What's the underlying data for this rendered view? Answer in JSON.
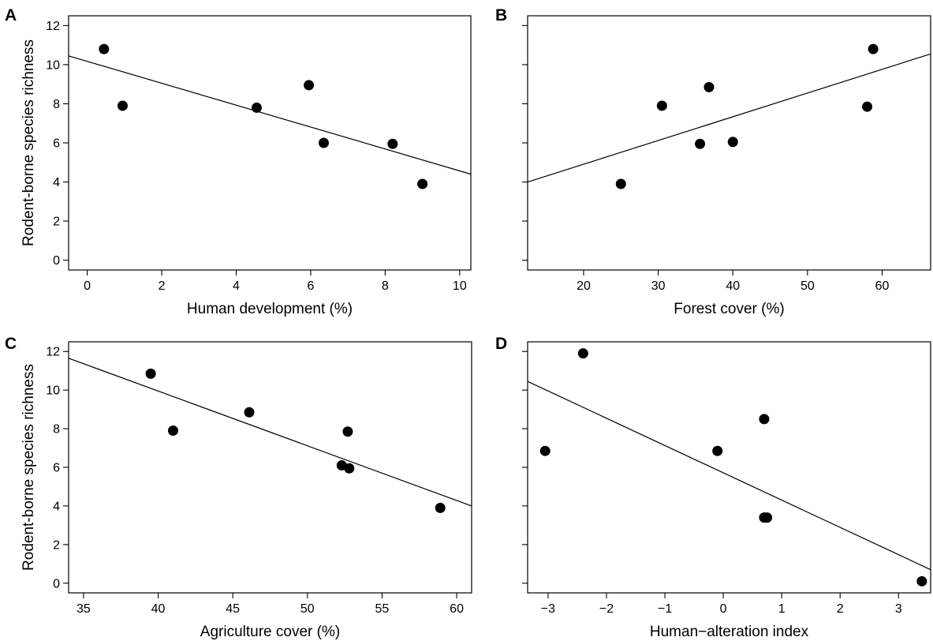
{
  "chart_data": [
    {
      "panel": "A",
      "type": "scatter",
      "xlabel": "Human development (%)",
      "ylabel": "Rodent-borne species richness",
      "xlim": [
        -0.5,
        10.3
      ],
      "ylim": [
        -0.5,
        12.5
      ],
      "xticks": [
        0,
        2,
        4,
        6,
        8,
        10
      ],
      "yticks": [
        0,
        2,
        4,
        6,
        8,
        10,
        12
      ],
      "show_y_tick_labels": true,
      "points": [
        {
          "x": 0.45,
          "y": 10.8
        },
        {
          "x": 0.95,
          "y": 7.9
        },
        {
          "x": 4.55,
          "y": 7.8
        },
        {
          "x": 5.95,
          "y": 8.95
        },
        {
          "x": 6.35,
          "y": 6.0
        },
        {
          "x": 8.2,
          "y": 5.95
        },
        {
          "x": 9.0,
          "y": 3.9
        }
      ],
      "fit_line": {
        "x": [
          -0.5,
          10.3
        ],
        "y": [
          10.45,
          4.4
        ]
      }
    },
    {
      "panel": "B",
      "type": "scatter",
      "xlabel": "Forest cover (%)",
      "ylabel": "",
      "xlim": [
        12.5,
        66.5
      ],
      "ylim": [
        -0.5,
        12.5
      ],
      "xticks": [
        20,
        30,
        40,
        50,
        60
      ],
      "yticks": [
        0,
        2,
        4,
        6,
        8,
        10,
        12
      ],
      "show_y_tick_labels": false,
      "points": [
        {
          "x": 25.0,
          "y": 3.9
        },
        {
          "x": 30.5,
          "y": 7.9
        },
        {
          "x": 35.6,
          "y": 5.95
        },
        {
          "x": 36.8,
          "y": 8.85
        },
        {
          "x": 40.0,
          "y": 6.05
        },
        {
          "x": 58.0,
          "y": 7.85
        },
        {
          "x": 58.8,
          "y": 10.8
        }
      ],
      "fit_line": {
        "x": [
          12.5,
          66.5
        ],
        "y": [
          4.0,
          10.55
        ]
      }
    },
    {
      "panel": "C",
      "type": "scatter",
      "xlabel": "Agriculture cover (%)",
      "ylabel": "Rodent-borne species richness",
      "xlim": [
        34.0,
        61.0
      ],
      "ylim": [
        -0.5,
        12.5
      ],
      "xticks": [
        35,
        40,
        45,
        50,
        55,
        60
      ],
      "yticks": [
        0,
        2,
        4,
        6,
        8,
        10,
        12
      ],
      "show_y_tick_labels": true,
      "points": [
        {
          "x": 39.5,
          "y": 10.85
        },
        {
          "x": 41.0,
          "y": 7.9
        },
        {
          "x": 46.1,
          "y": 8.85
        },
        {
          "x": 52.3,
          "y": 6.1
        },
        {
          "x": 52.7,
          "y": 7.85
        },
        {
          "x": 52.8,
          "y": 5.95
        },
        {
          "x": 58.9,
          "y": 3.9
        }
      ],
      "fit_line": {
        "x": [
          34.0,
          61.0
        ],
        "y": [
          11.65,
          4.0
        ]
      }
    },
    {
      "panel": "D",
      "type": "scatter",
      "xlabel": "Human−alteration index",
      "ylabel": "",
      "xlim": [
        -3.35,
        3.55
      ],
      "ylim": [
        -0.5,
        12.5
      ],
      "xticks": [
        -3,
        -2,
        -1,
        0,
        1,
        2,
        3
      ],
      "xtick_labels": [
        "−3",
        "−2",
        "−1",
        "0",
        "1",
        "2",
        "3"
      ],
      "yticks": [
        0,
        2,
        4,
        6,
        8,
        10,
        12
      ],
      "show_y_tick_labels": false,
      "points": [
        {
          "x": -3.05,
          "y": 6.85
        },
        {
          "x": -2.4,
          "y": 11.9
        },
        {
          "x": -0.1,
          "y": 6.85
        },
        {
          "x": 0.7,
          "y": 8.5
        },
        {
          "x": 0.7,
          "y": 3.4
        },
        {
          "x": 0.75,
          "y": 3.4
        },
        {
          "x": 3.4,
          "y": 0.1
        }
      ],
      "fit_line": {
        "x": [
          -3.35,
          3.55
        ],
        "y": [
          10.45,
          0.7
        ]
      }
    }
  ]
}
